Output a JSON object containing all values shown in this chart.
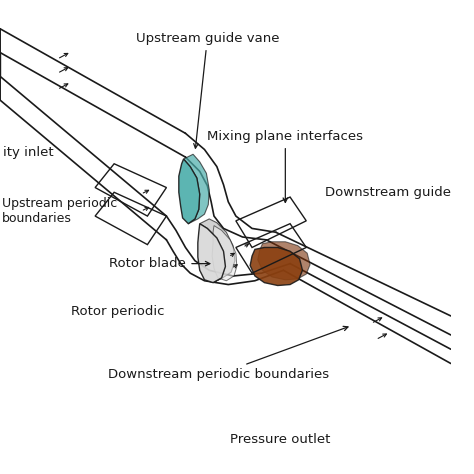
{
  "bg_color": "#ffffff",
  "labels": {
    "upstream_guide_vane": "Upstream guide vane",
    "velocity_inlet": "ity inlet",
    "mixing_plane": "Mixing plane interfaces",
    "upstream_periodic": "Upstream periodic\nboundaries",
    "downstream_guide": "Downstream guide",
    "rotor_blade": "Rotor blade",
    "rotor_periodic": "Rotor periodic",
    "downstream_periodic": "Downstream periodic boundaries",
    "pressure_outlet": "Pressure outlet"
  },
  "teal_color": "#4aadaa",
  "brown_color": "#8B4010",
  "gray_light": "#d8d8d8",
  "gray_mid": "#b8b8b8",
  "line_color": "#1a1a1a",
  "font_size": 9.5
}
